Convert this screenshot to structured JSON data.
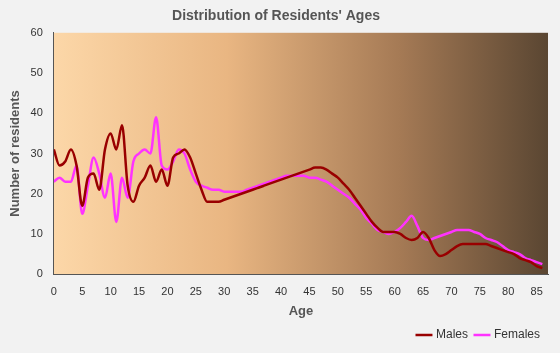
{
  "chart_data": {
    "type": "line",
    "title": "Distribution of Residents' Ages",
    "x_label": "Age",
    "y_label": "Number of residents",
    "x": [
      0,
      1,
      2,
      3,
      4,
      5,
      6,
      7,
      8,
      9,
      10,
      11,
      12,
      13,
      14,
      15,
      16,
      17,
      18,
      19,
      20,
      21,
      22,
      23,
      24,
      25,
      26,
      27,
      28,
      29,
      30,
      31,
      32,
      33,
      34,
      35,
      36,
      37,
      38,
      39,
      40,
      41,
      42,
      43,
      44,
      45,
      46,
      47,
      48,
      49,
      50,
      51,
      52,
      53,
      54,
      55,
      56,
      57,
      58,
      59,
      60,
      61,
      62,
      63,
      64,
      65,
      66,
      67,
      68,
      69,
      70,
      71,
      72,
      73,
      74,
      75,
      76,
      77,
      78,
      79,
      80,
      81,
      82,
      83,
      84,
      85,
      86
    ],
    "series": [
      {
        "name": "Males",
        "color": "#990000",
        "values": [
          31,
          27,
          28,
          31,
          27,
          17,
          24,
          25,
          21,
          31,
          35,
          31,
          37,
          22,
          18,
          22,
          24,
          27,
          23,
          26,
          22,
          29,
          30,
          31,
          29,
          25,
          21,
          18,
          18,
          18,
          18.5,
          19,
          19.5,
          20,
          20.5,
          21,
          21.5,
          22,
          22.5,
          23,
          23.5,
          24,
          24.5,
          25,
          25.5,
          26,
          26.5,
          26.5,
          26,
          25,
          24,
          22.5,
          21,
          19,
          17,
          15,
          13,
          11.5,
          10.5,
          10.5,
          10.5,
          10,
          9,
          8.5,
          9,
          10.5,
          9,
          6,
          4.5,
          5,
          6,
          7,
          7.5,
          7.5,
          7.5,
          7.5,
          7.5,
          7,
          6.5,
          6,
          5.5,
          5,
          4,
          3.5,
          3,
          2,
          1.5
        ]
      },
      {
        "name": "Females",
        "color": "#ff33ff",
        "values": [
          23,
          24,
          23,
          23,
          27,
          15,
          22,
          29,
          25,
          19,
          25,
          13,
          24,
          19,
          28,
          30,
          31,
          30,
          39,
          27,
          26,
          28,
          31,
          30,
          26,
          23,
          22,
          21.5,
          21,
          21,
          20.5,
          20.5,
          20.5,
          20.5,
          21,
          21.5,
          22,
          22.5,
          23,
          23.5,
          24,
          24.5,
          24.5,
          24.5,
          24.5,
          24,
          24,
          23.5,
          23,
          22,
          21,
          20,
          19,
          17.5,
          16,
          14,
          12.5,
          11,
          10.5,
          10,
          10.5,
          11.5,
          13,
          14.5,
          12,
          9,
          8.5,
          9,
          9.5,
          10,
          10.5,
          11,
          11,
          11,
          10.5,
          10,
          9,
          8.5,
          8,
          7,
          6,
          5.5,
          5,
          4,
          3.5,
          3,
          2.5
        ]
      }
    ],
    "xlim": [
      0,
      87
    ],
    "xticks": [
      0,
      5,
      10,
      15,
      20,
      25,
      30,
      35,
      40,
      45,
      50,
      55,
      60,
      65,
      70,
      75,
      80,
      85
    ],
    "ylim": [
      0,
      60
    ],
    "yticks": [
      0,
      10,
      20,
      30,
      40,
      50,
      60
    ],
    "grid": false,
    "legend": "lower right"
  }
}
